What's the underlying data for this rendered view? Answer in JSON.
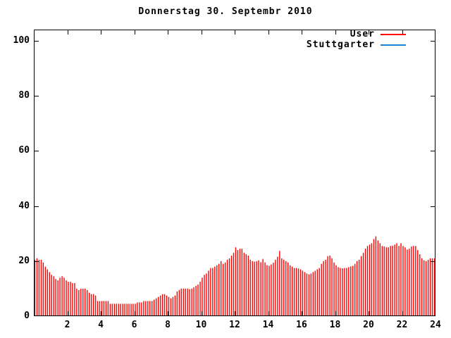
{
  "title": "Donnerstag 30. Septembr 2010",
  "colors": {
    "user_series": "#ff0000",
    "stuttgarter_series": "#1e7fd4",
    "axis": "#000000",
    "background": "#ffffff"
  },
  "legend": [
    {
      "label": "User",
      "color": "#ff0000"
    },
    {
      "label": "Stuttgarter",
      "color": "#1e7fd4"
    }
  ],
  "chart_data": {
    "type": "bar",
    "subtype": "impulses",
    "title": "Donnerstag 30. Septembr 2010",
    "xlabel": "",
    "ylabel": "",
    "xlim": [
      0,
      24
    ],
    "ylim": [
      0,
      100
    ],
    "x_ticks": [
      2,
      4,
      6,
      8,
      10,
      12,
      14,
      16,
      18,
      20,
      22,
      24
    ],
    "y_ticks": [
      0,
      20,
      40,
      60,
      80,
      100
    ],
    "grid": false,
    "legend_position": "top-right-inside",
    "x_unit": "hour-of-day",
    "series": [
      {
        "name": "User",
        "color": "#ff0000",
        "x_start": 0,
        "x_step": 0.125,
        "values": [
          20.5,
          21,
          20.5,
          20.5,
          19.5,
          18,
          17,
          16,
          15,
          14.5,
          13.5,
          13,
          14,
          14.5,
          14,
          13,
          12.5,
          12.5,
          12,
          12,
          10,
          9.5,
          10,
          10,
          10,
          9.5,
          8.5,
          8,
          8,
          7.5,
          5.5,
          5.5,
          5.5,
          5.5,
          5.5,
          5.5,
          4.5,
          4.5,
          4.5,
          4.5,
          4.5,
          4.5,
          4.5,
          4.5,
          4.5,
          4.5,
          4.5,
          4.5,
          4.5,
          5,
          5,
          5,
          5.5,
          5.5,
          5.5,
          5.5,
          5.5,
          6,
          6.5,
          7,
          7.5,
          8,
          8,
          7.5,
          7,
          6.5,
          7,
          7.5,
          9,
          9.5,
          10,
          10,
          10,
          10,
          9.8,
          10,
          10.5,
          11,
          11.5,
          12.5,
          14,
          15,
          15.5,
          16.5,
          17.5,
          17.5,
          18,
          18.5,
          19,
          20,
          19,
          19.5,
          20.5,
          21,
          22,
          23,
          25,
          24,
          24.5,
          24.5,
          23,
          22.5,
          22,
          20.5,
          20,
          19.8,
          20,
          20.3,
          19.6,
          20.8,
          19.5,
          18.5,
          18.3,
          18.8,
          19.4,
          20.5,
          21.6,
          23.7,
          21,
          20.5,
          20,
          19.5,
          18.5,
          18,
          17.5,
          17.5,
          17.3,
          17,
          16.5,
          16,
          15.5,
          15.2,
          15.5,
          16,
          16.5,
          17,
          17.5,
          19,
          20,
          20.5,
          21.8,
          22,
          21,
          19.5,
          18.5,
          17.8,
          17.5,
          17.4,
          17.5,
          17.5,
          17.8,
          18.1,
          18.3,
          19,
          20,
          20.5,
          21.8,
          23,
          24.5,
          25.5,
          26,
          26.5,
          28,
          29,
          27.5,
          26.5,
          25.5,
          25.3,
          25,
          25,
          25.5,
          25.6,
          26,
          26.5,
          25.5,
          26.5,
          25.5,
          25,
          24.2,
          24.5,
          25.3,
          25.5,
          25.5,
          24,
          22.5,
          21,
          20.3,
          20,
          20.5,
          21,
          21,
          21
        ]
      },
      {
        "name": "Stuttgarter",
        "color": "#1e7fd4",
        "x_start": 0,
        "x_step": 0.125,
        "values": []
      }
    ]
  }
}
